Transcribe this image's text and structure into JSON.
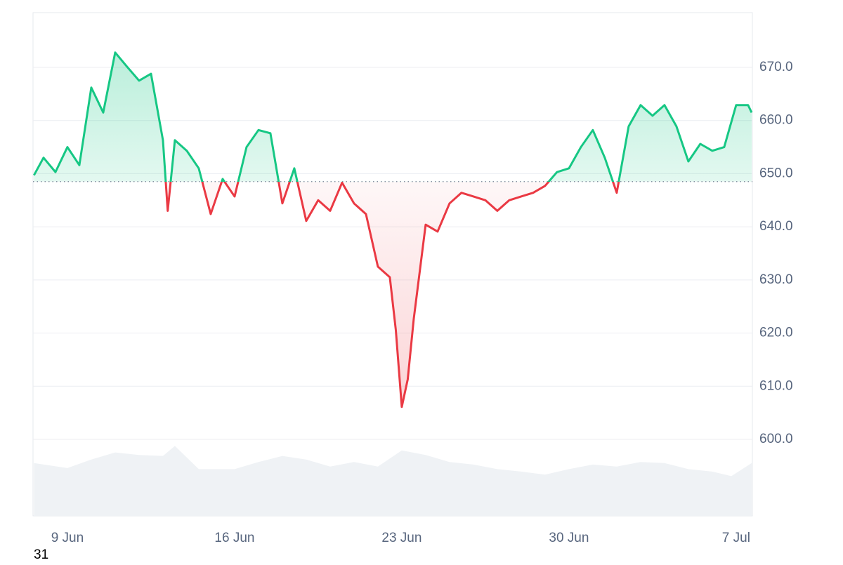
{
  "chart_data": {
    "type": "line",
    "baseline": 648.5,
    "ylim": [
      585.6,
      680.3
    ],
    "yticks": [
      {
        "value": 600,
        "label": "600.0"
      },
      {
        "value": 610,
        "label": "610.0"
      },
      {
        "value": 620,
        "label": "620.0"
      },
      {
        "value": 630,
        "label": "630.0"
      },
      {
        "value": 640,
        "label": "640.0"
      },
      {
        "value": 650,
        "label": "650.0"
      },
      {
        "value": 660,
        "label": "660.0"
      },
      {
        "value": 670,
        "label": "670.0"
      }
    ],
    "xlim": [
      -1.44,
      28.68
    ],
    "xticks": [
      {
        "value": 0,
        "label": "9 Jun"
      },
      {
        "value": 7,
        "label": "16 Jun"
      },
      {
        "value": 14,
        "label": "23 Jun"
      },
      {
        "value": 21,
        "label": "30 Jun"
      },
      {
        "value": 28,
        "label": "7 Jul"
      }
    ],
    "grid": true,
    "series": [
      {
        "color_up": "#16c784",
        "color_down": "#ea3943",
        "x": [
          -1.4,
          -1.0,
          -0.5,
          0,
          0.5,
          1.0,
          1.5,
          2.0,
          2.5,
          3.0,
          3.5,
          4.0,
          4.2,
          4.5,
          5.0,
          5.5,
          6.0,
          6.5,
          7.0,
          7.5,
          8.0,
          8.5,
          9.0,
          9.5,
          10.0,
          10.5,
          11.0,
          11.5,
          12.0,
          12.5,
          13.0,
          13.5,
          13.75,
          14.0,
          14.25,
          14.5,
          15.0,
          15.5,
          16.0,
          16.5,
          17.0,
          17.5,
          18.0,
          18.5,
          19.0,
          19.5,
          20.0,
          20.5,
          21.0,
          21.5,
          22.0,
          22.5,
          23.0,
          23.5,
          24.0,
          24.5,
          25.0,
          25.5,
          26.0,
          26.5,
          27.0,
          27.5,
          28.0,
          28.5,
          28.65
        ],
        "values": [
          649.7,
          653.0,
          650.3,
          655.0,
          651.6,
          666.2,
          661.5,
          672.8,
          670.1,
          667.5,
          668.8,
          656.3,
          643.0,
          656.3,
          654.3,
          651.0,
          642.4,
          649.0,
          645.7,
          655.0,
          658.2,
          657.6,
          644.4,
          651.0,
          641.1,
          645.0,
          643.0,
          648.3,
          644.4,
          642.4,
          632.5,
          630.5,
          620.6,
          606.1,
          611.3,
          622.6,
          640.4,
          639.1,
          644.4,
          646.4,
          645.7,
          645.0,
          643.0,
          645.0,
          645.7,
          646.4,
          647.7,
          650.3,
          651.0,
          655.0,
          658.2,
          653.0,
          646.4,
          658.9,
          662.9,
          660.9,
          662.9,
          658.9,
          652.3,
          655.6,
          654.3,
          655.0,
          662.9,
          662.9,
          661.5
        ]
      }
    ],
    "y2lim": [
      0,
      100
    ],
    "volume": {
      "color": "#eff2f5",
      "axis": "y2",
      "x": [
        -1.4,
        0,
        1,
        2,
        3,
        4,
        4.5,
        5.5,
        7,
        8,
        9,
        10,
        11,
        12,
        13,
        14,
        15,
        16,
        17,
        18,
        19,
        20,
        21,
        22,
        23,
        24,
        25,
        26,
        27,
        27.8,
        28.65
      ],
      "values": [
        10.5,
        9.5,
        11.2,
        12.6,
        12.1,
        11.9,
        13.9,
        9.3,
        9.3,
        10.7,
        11.9,
        11.2,
        9.8,
        10.7,
        9.8,
        13.0,
        12.1,
        10.7,
        10.2,
        9.3,
        8.8,
        8.2,
        9.3,
        10.2,
        9.8,
        10.7,
        10.5,
        9.3,
        8.8,
        7.9,
        10.5
      ]
    },
    "annotation": "31"
  }
}
